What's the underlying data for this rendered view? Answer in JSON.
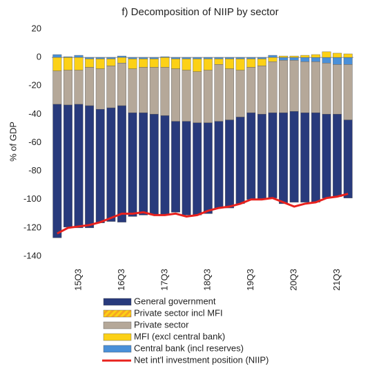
{
  "chart_data": {
    "type": "bar",
    "title": "f) Decomposition of NIIP by sector",
    "y_label": "% of GDP",
    "categories": [
      null,
      null,
      "15Q3",
      null,
      null,
      null,
      "16Q3",
      null,
      null,
      null,
      "17Q3",
      null,
      null,
      null,
      "18Q3",
      null,
      null,
      null,
      "19Q3",
      null,
      null,
      null,
      "20Q3",
      null,
      null,
      null,
      "21Q3",
      null
    ],
    "ylim": [
      -140,
      20
    ],
    "yticks": [
      -140,
      -120,
      -100,
      -80,
      -60,
      -40,
      -20,
      0,
      20
    ],
    "series": [
      {
        "name": "General government",
        "color": "#283a7c",
        "type": "bar",
        "values": [
          -94,
          -86,
          -87,
          -86,
          -80,
          -80,
          -82,
          -73,
          -72,
          -71,
          -70,
          -64,
          -66,
          -65,
          -64,
          -61,
          -62,
          -61,
          -61,
          -60,
          -60,
          -64,
          -64,
          -63,
          -63,
          -59,
          -58,
          -55
        ]
      },
      {
        "name": "Private sector incl MFI",
        "color": "#f5a623",
        "type": "bar",
        "values": [
          null,
          null,
          null,
          null,
          null,
          null,
          null,
          null,
          null,
          null,
          null,
          null,
          null,
          null,
          null,
          null,
          null,
          null,
          null,
          null,
          null,
          null,
          null,
          null,
          null,
          null,
          null,
          null
        ]
      },
      {
        "name": "Private sector",
        "color": "#b5a899",
        "type": "bar",
        "values": [
          -23.5,
          -24.5,
          -24,
          -27,
          -28.5,
          -29.5,
          -30,
          -31,
          -32,
          -33,
          -34,
          -37,
          -36,
          -36,
          -37,
          -40,
          -36,
          -33,
          -32,
          -34,
          -36,
          -37,
          -36,
          -36,
          -36,
          -36,
          -35,
          -39
        ]
      },
      {
        "name": "MFI (excl central bank)",
        "color": "#fcd116",
        "type": "bar",
        "values": [
          -9.5,
          -9,
          -9,
          -6,
          -7,
          -5,
          -4,
          -7,
          -6,
          -6,
          -7,
          -7,
          -8,
          -9,
          -8,
          -4,
          -7,
          -8,
          -6,
          -5,
          -3,
          1,
          1,
          1.5,
          2,
          4,
          3,
          2.5
        ]
      },
      {
        "name": "Central bank (incl reserves)",
        "color": "#4a90d9",
        "type": "bar",
        "values": [
          2,
          0.5,
          1.5,
          -1,
          -1,
          -1,
          1,
          -1,
          -1,
          -1,
          0.5,
          -1,
          -1,
          -1,
          -1,
          -1,
          -1,
          -1,
          -1,
          -1,
          1.5,
          -2,
          -2,
          -3,
          -3,
          -4,
          -5,
          -5
        ]
      },
      {
        "name": "Net int'l investment position (NIIP)",
        "color": "#e8211d",
        "type": "line",
        "values": [
          -124,
          -120,
          -119,
          -118,
          -116,
          -113,
          -110,
          -110,
          -109,
          -111,
          -111,
          -110,
          -112,
          -111,
          -108,
          -106,
          -105,
          -103,
          -100,
          -100,
          -99,
          -102,
          -105,
          -103,
          -102,
          -99,
          -98,
          -96
        ]
      }
    ]
  }
}
